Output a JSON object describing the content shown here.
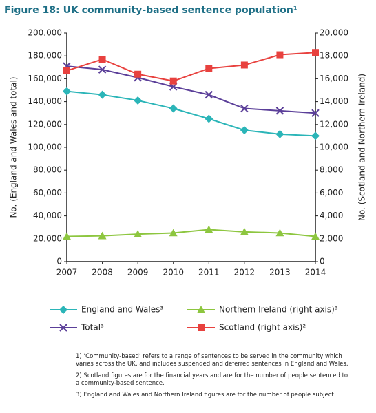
{
  "chart_data": {
    "type": "line",
    "title": "Figure 18: UK community-based sentence population¹",
    "y_label": "No. (England and Wales and total)",
    "y2_label": "No. (Scotland and Northern Ireland)",
    "categories": [
      "2007",
      "2008",
      "2009",
      "2010",
      "2011",
      "2012",
      "2013",
      "2014"
    ],
    "series": [
      {
        "name": "England and Wales³",
        "color": "#2bb5b8",
        "marker": "diamond",
        "values": [
          149000,
          146000,
          141000,
          134000,
          125000,
          115000,
          111500,
          110000
        ]
      },
      {
        "name": "Northern Ireland (right axis)³",
        "color": "#8dc63f",
        "marker": "triangle",
        "axis": "y2",
        "values": [
          2200,
          2250,
          2400,
          2500,
          2800,
          2600,
          2500,
          2200
        ]
      },
      {
        "name": "Total³",
        "color": "#5b3f99",
        "marker": "x",
        "values": [
          171000,
          168000,
          161000,
          153000,
          146000,
          134000,
          132000,
          130000
        ]
      },
      {
        "name": "Scotland (right axis)²",
        "color": "#e8413e",
        "marker": "square",
        "axis": "y2",
        "values": [
          16700,
          17700,
          16400,
          15800,
          16900,
          17200,
          18100,
          18300
        ]
      }
    ],
    "ylim": [
      0,
      200000
    ],
    "yticks": [
      0,
      {
        "value": 20000,
        "label": "20,000"
      },
      {
        "value": 40000,
        "label": "40,000"
      },
      {
        "value": 60000,
        "label": "60,000"
      },
      {
        "value": 80000,
        "label": "80,000"
      },
      {
        "value": 100000,
        "label": "100,000"
      },
      {
        "value": 120000,
        "label": "120,000"
      },
      {
        "value": 140000,
        "label": "140,000"
      },
      {
        "value": 160000,
        "label": "160,000"
      },
      {
        "value": 180000,
        "label": "180,000"
      },
      {
        "value": 200000,
        "label": "200,000"
      }
    ],
    "y2lim": [
      0,
      20000
    ],
    "y2ticks": [
      0,
      {
        "value": 2000,
        "label": "2,000"
      },
      {
        "value": 4000,
        "label": "4,000"
      },
      {
        "value": 6000,
        "label": "6,000"
      },
      {
        "value": 8000,
        "label": "8,000"
      },
      {
        "value": 10000,
        "label": "10,000"
      },
      {
        "value": 12000,
        "label": "12,000"
      },
      {
        "value": 14000,
        "label": "14,000"
      },
      {
        "value": 16000,
        "label": "16,000"
      },
      {
        "value": 18000,
        "label": "18,000"
      },
      {
        "value": 20000,
        "label": "20,000"
      }
    ],
    "grid": false,
    "legend": "bottom"
  },
  "notes": [
    "1) ‘Community-based’ refers to a range of sentences to be served in the community which varies across the UK, and includes suspended and deferred sentences in England and Wales.",
    "2) Scotland figures are for the financial years and are for the number of people sentenced to a community-based sentence.",
    "3) England and Wales and Northern Ireland figures are for the number of people subject"
  ]
}
